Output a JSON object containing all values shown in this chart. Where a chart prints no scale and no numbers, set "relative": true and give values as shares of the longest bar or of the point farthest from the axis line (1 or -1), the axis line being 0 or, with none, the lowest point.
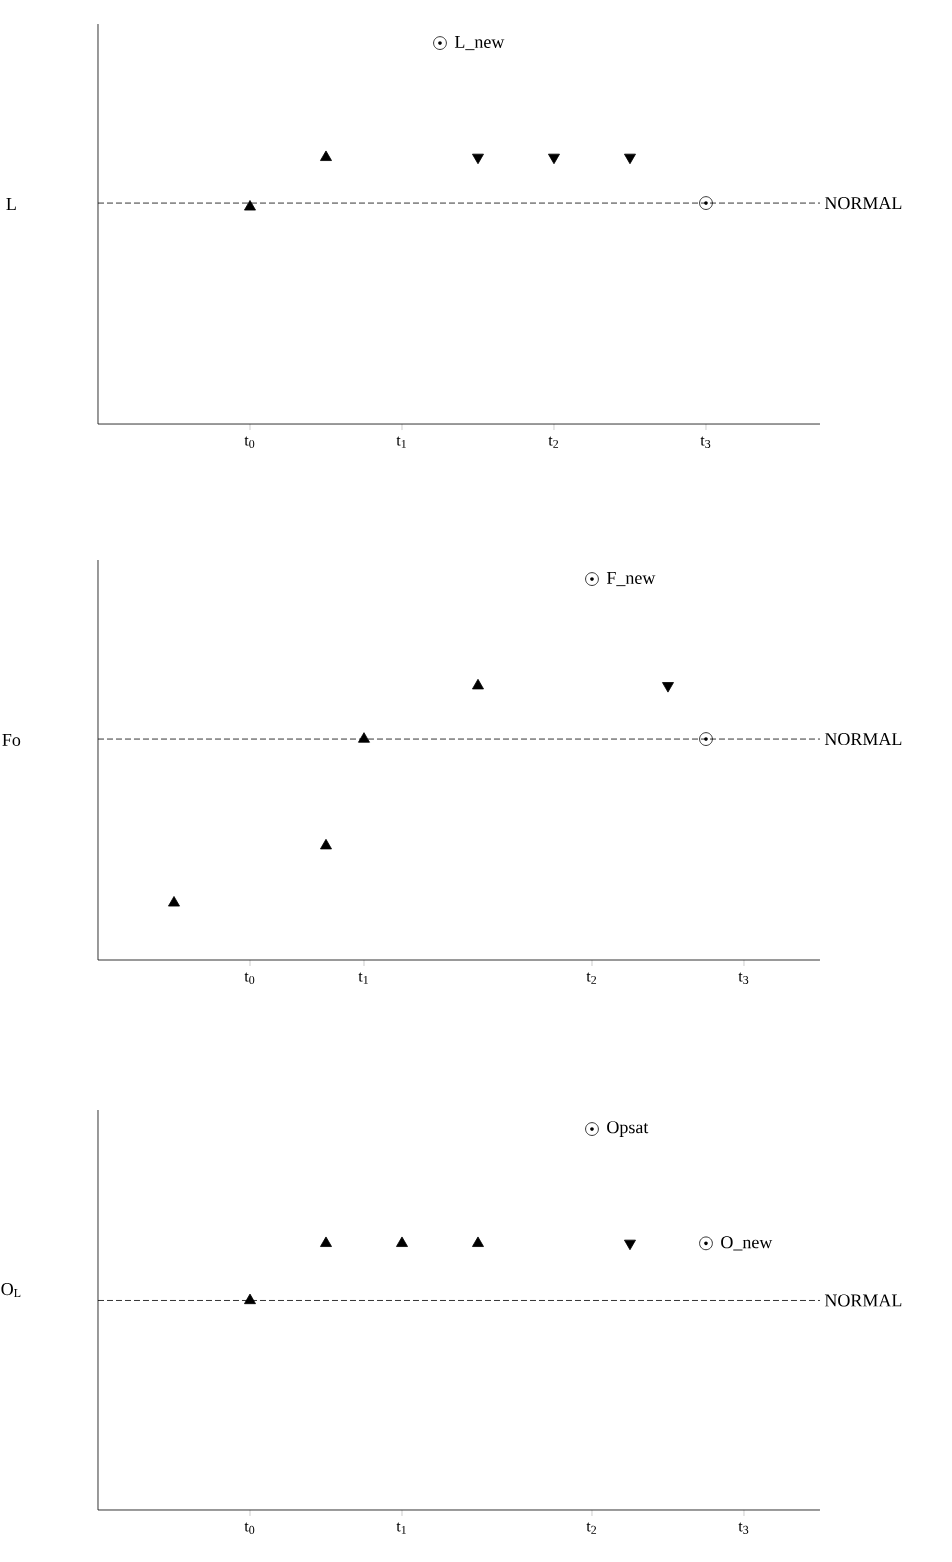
{
  "chart_data": [
    {
      "type": "scatter",
      "relative": true,
      "ylabel": "L",
      "categories": [
        null,
        null,
        null,
        "t$_{0}$",
        null,
        null,
        null,
        "t$_{1}$",
        null,
        null,
        null,
        "t$_{2}$",
        null,
        null,
        null,
        "t$_{3}$",
        null,
        null
      ],
      "series": [
        {
          "marker": "triangle",
          "color": "#000000",
          "values": [
            null,
            null,
            null,
            0.57,
            null,
            0.7,
            null,
            null,
            null,
            null,
            null,
            null,
            null,
            null,
            null,
            null,
            null,
            null
          ]
        },
        {
          "marker": "triangle-down",
          "color": "#000000",
          "values": [
            null,
            null,
            null,
            null,
            null,
            null,
            null,
            null,
            null,
            0.7,
            null,
            0.7,
            null,
            0.7,
            null,
            null,
            null,
            null
          ]
        },
        {
          "marker": "circle",
          "color": "#000000",
          "values": [
            null,
            null,
            null,
            null,
            null,
            null,
            null,
            null,
            1,
            null,
            null,
            null,
            null,
            null,
            null,
            0.58,
            null,
            null
          ]
        }
      ],
      "ref_lines": [
        {
          "axis": "y",
          "value": 0.58,
          "label": "NORMAL",
          "line_style": "dashed"
        }
      ],
      "annotations": [
        "L_new"
      ]
    },
    {
      "type": "scatter",
      "relative": true,
      "ylabel": "Fo",
      "categories": [
        null,
        null,
        null,
        "t$_{0}$",
        null,
        null,
        "t$_{1}$",
        null,
        null,
        null,
        null,
        null,
        "t$_{2}$",
        null,
        null,
        null,
        "t$_{3}$",
        null
      ],
      "series": [
        {
          "marker": "triangle",
          "color": "#000000",
          "values": [
            null,
            0.15,
            null,
            null,
            null,
            0.3,
            0.58,
            null,
            null,
            0.72,
            null,
            null,
            null,
            null,
            null,
            null,
            null,
            null
          ]
        },
        {
          "marker": "triangle-down",
          "color": "#000000",
          "values": [
            null,
            null,
            null,
            null,
            null,
            null,
            null,
            null,
            null,
            null,
            null,
            null,
            null,
            null,
            0.72,
            null,
            null,
            null
          ]
        },
        {
          "marker": "circle",
          "color": "#000000",
          "values": [
            null,
            null,
            null,
            null,
            null,
            null,
            null,
            null,
            null,
            null,
            null,
            null,
            1,
            null,
            null,
            0.58,
            null,
            null
          ]
        }
      ],
      "ref_lines": [
        {
          "axis": "y",
          "value": 0.58,
          "label": "NORMAL",
          "line_style": "dashed"
        }
      ],
      "annotations": [
        "F_new"
      ]
    },
    {
      "type": "scatter",
      "relative": true,
      "ylabel": "O$_{L}$",
      "categories": [
        null,
        null,
        null,
        "t$_{0}$",
        null,
        null,
        null,
        "t$_{1}$",
        null,
        null,
        null,
        null,
        "t$_{2}$",
        null,
        null,
        null,
        "t$_{3}$",
        null
      ],
      "series": [
        {
          "marker": "triangle",
          "color": "#000000",
          "values": [
            null,
            null,
            null,
            0.55,
            null,
            0.7,
            null,
            0.7,
            null,
            0.7,
            null,
            null,
            null,
            null,
            null,
            null,
            null,
            null
          ]
        },
        {
          "marker": "triangle-down",
          "color": "#000000",
          "values": [
            null,
            null,
            null,
            null,
            null,
            null,
            null,
            null,
            null,
            null,
            null,
            null,
            null,
            0.7,
            null,
            null,
            null,
            null
          ]
        },
        {
          "marker": "circle",
          "color": "#000000",
          "values": [
            null,
            null,
            null,
            null,
            null,
            null,
            null,
            null,
            null,
            null,
            null,
            null,
            1,
            null,
            null,
            0.7,
            null,
            null
          ]
        }
      ],
      "ref_lines": [
        {
          "axis": "y",
          "value": 0.55,
          "label": "NORMAL",
          "line_style": "dashed"
        }
      ],
      "annotations": [
        "Opsat",
        "O_new"
      ]
    }
  ]
}
